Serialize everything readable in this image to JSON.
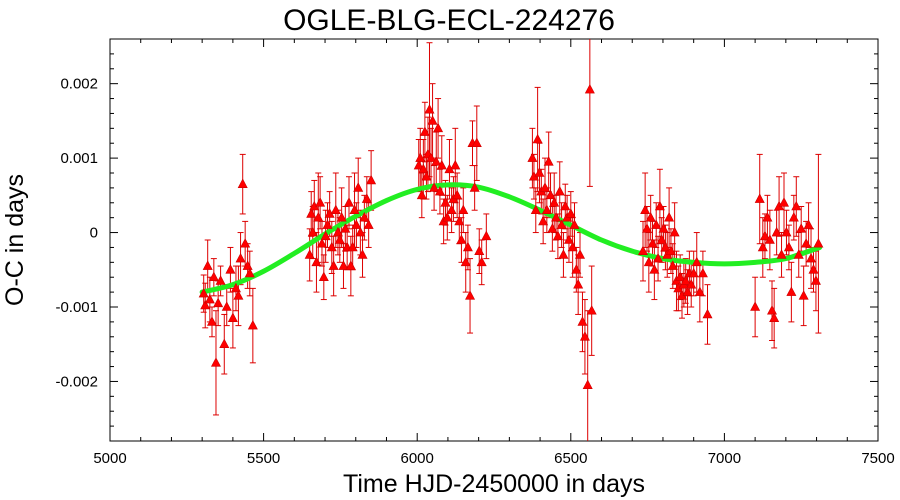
{
  "chart_data": {
    "type": "scatter",
    "title": "OGLE-BLG-ECL-224276",
    "xlabel": "Time HJD-2450000 in days",
    "ylabel": "O-C in days",
    "xlim": [
      5000,
      7500
    ],
    "ylim": [
      -0.0028,
      0.0026
    ],
    "x_ticks": [
      5000,
      5500,
      6000,
      6500,
      7000,
      7500
    ],
    "x_tick_labels": [
      "5000",
      "5500",
      "6000",
      "6500",
      "7000",
      "7500"
    ],
    "y_ticks": [
      0.002,
      0.001,
      0,
      -0.001,
      -0.002
    ],
    "y_tick_labels": [
      "0.002",
      "0.001",
      "0",
      "-0.001",
      "-0.002"
    ],
    "grid": false,
    "series": [
      {
        "kind": "points_with_errorbars",
        "marker": "triangle",
        "color": "#ff0000",
        "points": [
          {
            "x": 5305,
            "y": -0.00082,
            "err": 0.00025
          },
          {
            "x": 5310,
            "y": -0.00098,
            "err": 0.0003
          },
          {
            "x": 5318,
            "y": -0.00045,
            "err": 0.00035
          },
          {
            "x": 5325,
            "y": -0.0009,
            "err": 0.0003
          },
          {
            "x": 5332,
            "y": -0.0012,
            "err": 0.0002
          },
          {
            "x": 5338,
            "y": -0.0006,
            "err": 0.00025
          },
          {
            "x": 5345,
            "y": -0.00175,
            "err": 0.0007
          },
          {
            "x": 5352,
            "y": -0.00095,
            "err": 0.0003
          },
          {
            "x": 5360,
            "y": -0.00065,
            "err": 0.0002
          },
          {
            "x": 5372,
            "y": -0.0015,
            "err": 0.0004
          },
          {
            "x": 5380,
            "y": -0.001,
            "err": 0.00025
          },
          {
            "x": 5392,
            "y": -0.0005,
            "err": 0.0003
          },
          {
            "x": 5400,
            "y": -0.00115,
            "err": 0.0004
          },
          {
            "x": 5410,
            "y": -0.00075,
            "err": 0.0003
          },
          {
            "x": 5418,
            "y": -0.00085,
            "err": 0.0004
          },
          {
            "x": 5425,
            "y": -0.00035,
            "err": 0.00035
          },
          {
            "x": 5432,
            "y": 0.00065,
            "err": 0.0004
          },
          {
            "x": 5440,
            "y": -0.00015,
            "err": 0.0003
          },
          {
            "x": 5448,
            "y": -0.00045,
            "err": 0.0003
          },
          {
            "x": 5455,
            "y": -0.00055,
            "err": 0.0003
          },
          {
            "x": 5465,
            "y": -0.00125,
            "err": 0.0005
          },
          {
            "x": 5650,
            "y": -0.0003,
            "err": 0.00035
          },
          {
            "x": 5655,
            "y": 0.00025,
            "err": 0.0003
          },
          {
            "x": 5660,
            "y": 0.0,
            "err": 0.00035
          },
          {
            "x": 5665,
            "y": 0.00035,
            "err": 0.00035
          },
          {
            "x": 5672,
            "y": -0.0004,
            "err": 0.0004
          },
          {
            "x": 5678,
            "y": 0.0002,
            "err": 0.0006
          },
          {
            "x": 5684,
            "y": 0.0004,
            "err": 0.00035
          },
          {
            "x": 5690,
            "y": -0.00015,
            "err": 0.0003
          },
          {
            "x": 5696,
            "y": -0.0006,
            "err": 0.0003
          },
          {
            "x": 5702,
            "y": -5e-05,
            "err": 0.00035
          },
          {
            "x": 5708,
            "y": 0.0001,
            "err": 0.0003
          },
          {
            "x": 5715,
            "y": 0.00025,
            "err": 0.0003
          },
          {
            "x": 5722,
            "y": -0.0002,
            "err": 0.00035
          },
          {
            "x": 5728,
            "y": -0.00045,
            "err": 0.0004
          },
          {
            "x": 5735,
            "y": 0.0003,
            "err": 0.0005
          },
          {
            "x": 5742,
            "y": 0.0,
            "err": 0.0003
          },
          {
            "x": 5748,
            "y": -0.0001,
            "err": 0.0003
          },
          {
            "x": 5754,
            "y": 0.0002,
            "err": 0.0004
          },
          {
            "x": 5760,
            "y": -0.00045,
            "err": 0.0003
          },
          {
            "x": 5766,
            "y": 5e-05,
            "err": 0.0003
          },
          {
            "x": 5772,
            "y": -0.0002,
            "err": 0.0003
          },
          {
            "x": 5778,
            "y": 0.0004,
            "err": 0.00035
          },
          {
            "x": 5784,
            "y": -0.00045,
            "err": 0.0004
          },
          {
            "x": 5790,
            "y": -0.0002,
            "err": 0.0003
          },
          {
            "x": 5796,
            "y": 0.0003,
            "err": 0.0005
          },
          {
            "x": 5802,
            "y": 0.0001,
            "err": 0.0003
          },
          {
            "x": 5808,
            "y": 0.0006,
            "err": 0.0004
          },
          {
            "x": 5815,
            "y": 0.0,
            "err": 0.0003
          },
          {
            "x": 5822,
            "y": -0.0003,
            "err": 0.0003
          },
          {
            "x": 5828,
            "y": 0.0002,
            "err": 0.0003
          },
          {
            "x": 5836,
            "y": 0.00045,
            "err": 0.0003
          },
          {
            "x": 5842,
            "y": 0.0001,
            "err": 0.0003
          },
          {
            "x": 5850,
            "y": 0.0007,
            "err": 0.0004
          },
          {
            "x": 6005,
            "y": 0.0009,
            "err": 0.00035
          },
          {
            "x": 6010,
            "y": 0.001,
            "err": 0.0004
          },
          {
            "x": 6015,
            "y": 0.0005,
            "err": 0.0003
          },
          {
            "x": 6020,
            "y": 0.00085,
            "err": 0.0004
          },
          {
            "x": 6025,
            "y": 0.00135,
            "err": 0.0004
          },
          {
            "x": 6030,
            "y": 0.00075,
            "err": 0.0003
          },
          {
            "x": 6035,
            "y": 0.00105,
            "err": 0.0005
          },
          {
            "x": 6040,
            "y": 0.00165,
            "err": 0.0009
          },
          {
            "x": 6045,
            "y": 0.001,
            "err": 0.0004
          },
          {
            "x": 6050,
            "y": 0.0015,
            "err": 0.0005
          },
          {
            "x": 6055,
            "y": 0.0006,
            "err": 0.0003
          },
          {
            "x": 6062,
            "y": 0.00095,
            "err": 0.0004
          },
          {
            "x": 6068,
            "y": 0.0014,
            "err": 0.0004
          },
          {
            "x": 6074,
            "y": 0.00055,
            "err": 0.0003
          },
          {
            "x": 6080,
            "y": 0.0009,
            "err": 0.0004
          },
          {
            "x": 6086,
            "y": 0.00015,
            "err": 0.0003
          },
          {
            "x": 6092,
            "y": 0.0004,
            "err": 0.0003
          },
          {
            "x": 6098,
            "y": 0.0002,
            "err": 0.0003
          },
          {
            "x": 6105,
            "y": 0.00085,
            "err": 0.0004
          },
          {
            "x": 6112,
            "y": 0.0003,
            "err": 0.0003
          },
          {
            "x": 6118,
            "y": 0.00045,
            "err": 0.0003
          },
          {
            "x": 6124,
            "y": 0.0009,
            "err": 0.0005
          },
          {
            "x": 6130,
            "y": 0.0005,
            "err": 0.0003
          },
          {
            "x": 6137,
            "y": 0.00015,
            "err": 0.0003
          },
          {
            "x": 6144,
            "y": -0.0001,
            "err": 0.0003
          },
          {
            "x": 6150,
            "y": 0.0003,
            "err": 0.0003
          },
          {
            "x": 6158,
            "y": -0.0004,
            "err": 0.0004
          },
          {
            "x": 6165,
            "y": -0.0002,
            "err": 0.0003
          },
          {
            "x": 6172,
            "y": -0.00085,
            "err": 0.0005
          },
          {
            "x": 6180,
            "y": 0.0012,
            "err": 0.0003
          },
          {
            "x": 6187,
            "y": 0.0006,
            "err": 0.0003
          },
          {
            "x": 6194,
            "y": 0.0012,
            "err": 0.0005
          },
          {
            "x": 6202,
            "y": -0.00025,
            "err": 0.0003
          },
          {
            "x": 6210,
            "y": -0.0004,
            "err": 0.0003
          },
          {
            "x": 6225,
            "y": -5e-05,
            "err": 0.0003
          },
          {
            "x": 6375,
            "y": 0.001,
            "err": 0.0004
          },
          {
            "x": 6380,
            "y": 0.00075,
            "err": 0.0003
          },
          {
            "x": 6386,
            "y": 0.0003,
            "err": 0.0003
          },
          {
            "x": 6392,
            "y": 0.00125,
            "err": 0.0007
          },
          {
            "x": 6398,
            "y": 0.0008,
            "err": 0.0004
          },
          {
            "x": 6404,
            "y": 0.00055,
            "err": 0.0003
          },
          {
            "x": 6410,
            "y": 0.00015,
            "err": 0.0003
          },
          {
            "x": 6416,
            "y": 0.0006,
            "err": 0.0004
          },
          {
            "x": 6422,
            "y": 0.0003,
            "err": 0.0003
          },
          {
            "x": 6428,
            "y": 0.00095,
            "err": 0.0004
          },
          {
            "x": 6434,
            "y": 0.0005,
            "err": 0.0003
          },
          {
            "x": 6440,
            "y": 5e-05,
            "err": 0.0003
          },
          {
            "x": 6446,
            "y": 0.0004,
            "err": 0.0004
          },
          {
            "x": 6452,
            "y": 0.0002,
            "err": 0.0003
          },
          {
            "x": 6458,
            "y": -5e-05,
            "err": 0.0003
          },
          {
            "x": 6464,
            "y": 0.00055,
            "err": 0.0004
          },
          {
            "x": 6470,
            "y": 0.0001,
            "err": 0.0003
          },
          {
            "x": 6476,
            "y": -0.0003,
            "err": 0.0003
          },
          {
            "x": 6482,
            "y": 0.00035,
            "err": 0.0003
          },
          {
            "x": 6488,
            "y": 0.0002,
            "err": 0.0003
          },
          {
            "x": 6494,
            "y": -0.0001,
            "err": 0.0003
          },
          {
            "x": 6500,
            "y": 0.00025,
            "err": 0.0003
          },
          {
            "x": 6506,
            "y": -0.0002,
            "err": 0.0004
          },
          {
            "x": 6512,
            "y": 0.0001,
            "err": 0.0003
          },
          {
            "x": 6518,
            "y": -0.0005,
            "err": 0.0003
          },
          {
            "x": 6524,
            "y": -0.0007,
            "err": 0.0004
          },
          {
            "x": 6530,
            "y": -0.0003,
            "err": 0.0003
          },
          {
            "x": 6538,
            "y": -0.0012,
            "err": 0.0004
          },
          {
            "x": 6546,
            "y": -0.0014,
            "err": 0.0005
          },
          {
            "x": 6555,
            "y": -0.00205,
            "err": 0.001
          },
          {
            "x": 6562,
            "y": 0.00192,
            "err": 0.0013
          },
          {
            "x": 6568,
            "y": -0.00105,
            "err": 0.0006
          },
          {
            "x": 6735,
            "y": -0.00025,
            "err": 0.0004
          },
          {
            "x": 6742,
            "y": 0.0003,
            "err": 0.0005
          },
          {
            "x": 6748,
            "y": 5e-05,
            "err": 0.0003
          },
          {
            "x": 6754,
            "y": -0.0004,
            "err": 0.0004
          },
          {
            "x": 6760,
            "y": 0.0002,
            "err": 0.0003
          },
          {
            "x": 6766,
            "y": -0.00015,
            "err": 0.0003
          },
          {
            "x": 6772,
            "y": -0.0005,
            "err": 0.0004
          },
          {
            "x": 6778,
            "y": 0.0001,
            "err": 0.0003
          },
          {
            "x": 6784,
            "y": -0.00035,
            "err": 0.0003
          },
          {
            "x": 6790,
            "y": 0.00035,
            "err": 0.0005
          },
          {
            "x": 6796,
            "y": -0.0001,
            "err": 0.0003
          },
          {
            "x": 6802,
            "y": 5e-05,
            "err": 0.0003
          },
          {
            "x": 6808,
            "y": -0.0002,
            "err": 0.0003
          },
          {
            "x": 6814,
            "y": -0.0003,
            "err": 0.0003
          },
          {
            "x": 6820,
            "y": 0.0002,
            "err": 0.0004
          },
          {
            "x": 6826,
            "y": -0.00025,
            "err": 0.0003
          },
          {
            "x": 6832,
            "y": -0.00045,
            "err": 0.0003
          },
          {
            "x": 6838,
            "y": 0.0,
            "err": 0.0004
          },
          {
            "x": 6844,
            "y": -0.00065,
            "err": 0.0004
          },
          {
            "x": 6850,
            "y": -0.00075,
            "err": 0.0003
          },
          {
            "x": 6856,
            "y": -0.0006,
            "err": 0.0003
          },
          {
            "x": 6862,
            "y": -0.00085,
            "err": 0.0003
          },
          {
            "x": 6868,
            "y": -0.0007,
            "err": 0.0003
          },
          {
            "x": 6874,
            "y": -0.00065,
            "err": 0.0003
          },
          {
            "x": 6880,
            "y": -0.0008,
            "err": 0.0003
          },
          {
            "x": 6886,
            "y": -0.00055,
            "err": 0.0003
          },
          {
            "x": 6892,
            "y": -0.0007,
            "err": 0.0003
          },
          {
            "x": 6900,
            "y": -0.00055,
            "err": 0.0003
          },
          {
            "x": 6910,
            "y": -0.0004,
            "err": 0.0004
          },
          {
            "x": 6920,
            "y": -0.0008,
            "err": 0.0004
          },
          {
            "x": 6930,
            "y": -0.00055,
            "err": 0.0003
          },
          {
            "x": 6945,
            "y": -0.0011,
            "err": 0.0004
          },
          {
            "x": 7100,
            "y": -0.001,
            "err": 0.0004
          },
          {
            "x": 7115,
            "y": 0.00045,
            "err": 0.0006
          },
          {
            "x": 7125,
            "y": -0.0002,
            "err": 0.0004
          },
          {
            "x": 7132,
            "y": -5e-05,
            "err": 0.0003
          },
          {
            "x": 7140,
            "y": 0.0002,
            "err": 0.0003
          },
          {
            "x": 7148,
            "y": -0.0001,
            "err": 0.0004
          },
          {
            "x": 7155,
            "y": -0.00105,
            "err": 0.0004
          },
          {
            "x": 7162,
            "y": -0.00115,
            "err": 0.0004
          },
          {
            "x": 7170,
            "y": 0.0,
            "err": 0.0003
          },
          {
            "x": 7178,
            "y": 0.00035,
            "err": 0.0004
          },
          {
            "x": 7186,
            "y": -0.0003,
            "err": 0.0003
          },
          {
            "x": 7194,
            "y": 0.0004,
            "err": 0.0004
          },
          {
            "x": 7202,
            "y": 0.0,
            "err": 0.0003
          },
          {
            "x": 7210,
            "y": -0.0002,
            "err": 0.0003
          },
          {
            "x": 7218,
            "y": -0.0008,
            "err": 0.0004
          },
          {
            "x": 7226,
            "y": 0.0002,
            "err": 0.0003
          },
          {
            "x": 7234,
            "y": 0.00035,
            "err": 0.0004
          },
          {
            "x": 7242,
            "y": -0.0003,
            "err": 0.0003
          },
          {
            "x": 7250,
            "y": 5e-05,
            "err": 0.0003
          },
          {
            "x": 7258,
            "y": -0.00085,
            "err": 0.0004
          },
          {
            "x": 7266,
            "y": -0.00015,
            "err": 0.0003
          },
          {
            "x": 7274,
            "y": 0.0001,
            "err": 0.0003
          },
          {
            "x": 7282,
            "y": -0.00035,
            "err": 0.0004
          },
          {
            "x": 7290,
            "y": -0.0005,
            "err": 0.0003
          },
          {
            "x": 7298,
            "y": -0.00065,
            "err": 0.0004
          },
          {
            "x": 7306,
            "y": -0.00015,
            "err": 0.0012
          }
        ]
      },
      {
        "kind": "fit_curve",
        "color": "#22ee22",
        "x": [
          5300,
          5400,
          5500,
          5600,
          5700,
          5800,
          5900,
          6000,
          6100,
          6200,
          6300,
          6400,
          6500,
          6600,
          6700,
          6800,
          6900,
          7000,
          7100,
          7200,
          7310
        ],
        "y": [
          -0.0008,
          -0.0007,
          -0.00052,
          -0.00028,
          -2e-05,
          0.00022,
          0.00043,
          0.00058,
          0.00064,
          0.00061,
          0.00048,
          0.0003,
          0.0001,
          -0.0001,
          -0.00025,
          -0.00035,
          -0.0004,
          -0.00042,
          -0.0004,
          -0.00035,
          -0.0002
        ]
      }
    ]
  }
}
